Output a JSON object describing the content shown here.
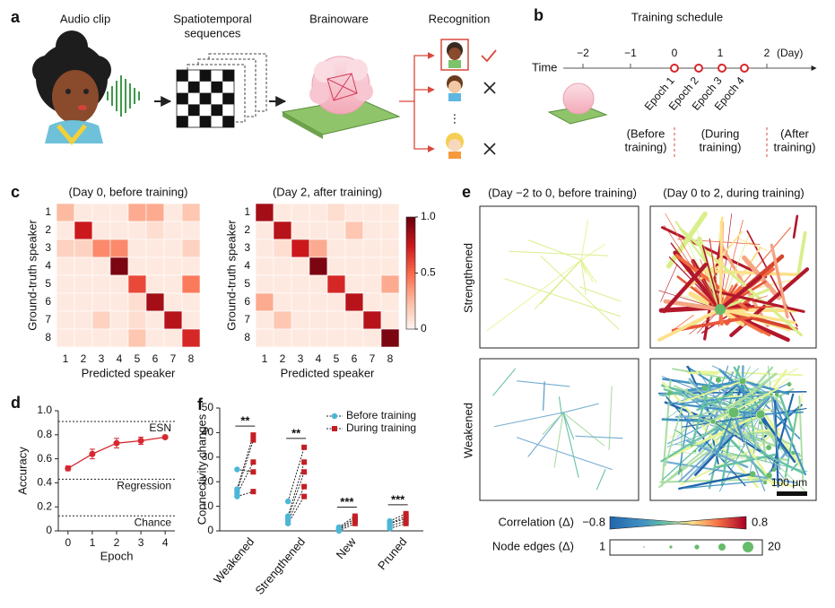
{
  "figure": {
    "panel_letters": [
      "a",
      "b",
      "c",
      "d",
      "e",
      "f"
    ]
  },
  "panel_a": {
    "titles": [
      "Audio clip",
      "Spatiotemporal",
      "sequences",
      "Brainoware",
      "Recognition"
    ]
  },
  "panel_b": {
    "title": "Training schedule",
    "time_label": "Time",
    "day_ticks": [
      "−2",
      "−1",
      "0",
      "1",
      "2"
    ],
    "day_unit": "(Day)",
    "epochs": [
      "Epoch 1",
      "Epoch 2",
      "Epoch 3",
      "Epoch 4"
    ],
    "phases": [
      [
        "(Before",
        "training)"
      ],
      [
        "(During",
        "training)"
      ],
      [
        "(After",
        "training)"
      ]
    ]
  },
  "chart_data": [
    {
      "type": "heatmap",
      "title": "(Day 0, before training)",
      "xlabel": "Predicted speaker",
      "ylabel": "Ground-truth speaker",
      "x_categories": [
        1,
        2,
        3,
        4,
        5,
        6,
        7,
        8
      ],
      "y_categories": [
        1,
        2,
        3,
        4,
        5,
        6,
        7,
        8
      ],
      "zlim": [
        0,
        1
      ],
      "colors": [
        "#fff5f0",
        "#fcbba1",
        "#fb6a4a",
        "#cb181d",
        "#67000d"
      ],
      "values": [
        [
          0.25,
          0.05,
          0.05,
          0.05,
          0.3,
          0.3,
          0.05,
          0.2
        ],
        [
          0.05,
          0.75,
          0.05,
          0.05,
          0.05,
          0.1,
          0.05,
          0.05
        ],
        [
          0.15,
          0.15,
          0.4,
          0.4,
          0.05,
          0.05,
          0.05,
          0.15
        ],
        [
          0.05,
          0.05,
          0.05,
          0.95,
          0.05,
          0.05,
          0.05,
          0.05
        ],
        [
          0.05,
          0.05,
          0.05,
          0.05,
          0.6,
          0.05,
          0.05,
          0.45
        ],
        [
          0.05,
          0.05,
          0.05,
          0.05,
          0.1,
          0.85,
          0.05,
          0.05
        ],
        [
          0.05,
          0.05,
          0.15,
          0.05,
          0.1,
          0.05,
          0.8,
          0.05
        ],
        [
          0.05,
          0.05,
          0.05,
          0.05,
          0.2,
          0.05,
          0.05,
          0.7
        ]
      ]
    },
    {
      "type": "heatmap",
      "title": "(Day 2, after training)",
      "xlabel": "Predicted speaker",
      "ylabel": "Ground-truth speaker",
      "x_categories": [
        1,
        2,
        3,
        4,
        5,
        6,
        7,
        8
      ],
      "y_categories": [
        1,
        2,
        3,
        4,
        5,
        6,
        7,
        8
      ],
      "zlim": [
        0,
        1
      ],
      "zticks": [
        0,
        0.5,
        {
          "value": 1,
          "label": "1.0"
        }
      ],
      "colors": [
        "#fff5f0",
        "#fcbba1",
        "#fb6a4a",
        "#cb181d",
        "#67000d"
      ],
      "values": [
        [
          0.85,
          0.05,
          0.05,
          0.05,
          0.1,
          0.05,
          0.05,
          0.05
        ],
        [
          0.05,
          0.8,
          0.05,
          0.05,
          0.05,
          0.2,
          0.05,
          0.05
        ],
        [
          0.05,
          0.1,
          0.75,
          0.3,
          0.05,
          0.05,
          0.05,
          0.05
        ],
        [
          0.05,
          0.05,
          0.05,
          0.95,
          0.05,
          0.05,
          0.05,
          0.05
        ],
        [
          0.05,
          0.05,
          0.05,
          0.05,
          0.7,
          0.05,
          0.05,
          0.3
        ],
        [
          0.3,
          0.05,
          0.05,
          0.05,
          0.05,
          0.8,
          0.05,
          0.05
        ],
        [
          0.05,
          0.2,
          0.05,
          0.05,
          0.05,
          0.05,
          0.8,
          0.05
        ],
        [
          0.05,
          0.05,
          0.05,
          0.05,
          0.05,
          0.05,
          0.05,
          0.95
        ]
      ]
    },
    {
      "type": "line",
      "xlabel": "Epoch",
      "ylabel": "Accuracy",
      "color": "#d7282f",
      "x": [
        0,
        1,
        2,
        3,
        4
      ],
      "values": [
        0.52,
        0.64,
        0.73,
        0.75,
        0.78
      ],
      "errors": [
        0.02,
        0.04,
        0.04,
        0.03,
        0.01
      ],
      "xlim": [
        -0.4,
        4.4
      ],
      "xticks": [
        0,
        1,
        2,
        3,
        4
      ],
      "ylim": [
        0,
        1
      ],
      "yticks": [
        0,
        0.2,
        0.4,
        0.6,
        0.8,
        {
          "value": 1,
          "label": "1.0"
        }
      ],
      "reference_lines": [
        {
          "label": "ESN",
          "value": 0.91
        },
        {
          "label": "Regression",
          "value": 0.43
        },
        {
          "label": "Chance",
          "value": 0.125
        }
      ]
    },
    {
      "type": "paired_dot",
      "ylabel": "Connectivity changes",
      "categories": [
        "Weakened",
        "Strengthened",
        "New",
        "Pruned"
      ],
      "series": [
        {
          "name": "Before training",
          "color": "#4db6d8",
          "values": [
            [
              25,
              17,
              16,
              15,
              14
            ],
            [
              12,
              6,
              5,
              4,
              3
            ],
            [
              1.5,
              1,
              1,
              0.5,
              0
            ],
            [
              4,
              3,
              3,
              2,
              1
            ]
          ]
        },
        {
          "name": "During training",
          "color": "#c41e24",
          "values": [
            [
              24,
              39,
              37,
              28,
              16
            ],
            [
              34,
              28,
              24,
              18,
              14
            ],
            [
              6,
              5,
              5,
              4,
              3
            ],
            [
              7,
              6,
              5,
              4,
              3
            ]
          ]
        }
      ],
      "significance": [
        "**",
        "**",
        "***",
        "***"
      ],
      "ylim": [
        0,
        50
      ],
      "yticks": [
        0,
        10,
        20,
        30,
        40,
        50
      ],
      "legend": "upper right"
    }
  ],
  "panel_e": {
    "titles": [
      "(Day −2 to 0, before training)",
      "(Day 0 to 2, during training)"
    ],
    "row_labels": [
      "Strengthened",
      "Weakened"
    ],
    "scale_bar": "100 μm",
    "correlation_label": "Correlation (Δ)",
    "correlation_range": [
      "−0.8",
      "0.8"
    ],
    "node_label": "Node edges (Δ)",
    "node_range": [
      "1",
      "20"
    ]
  }
}
